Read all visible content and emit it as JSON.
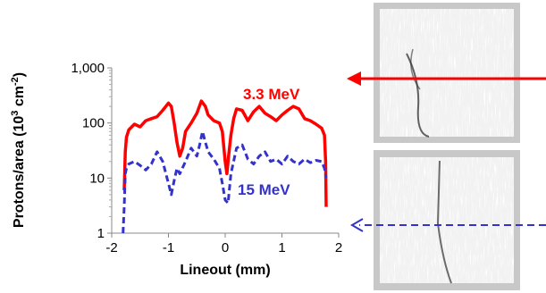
{
  "chart_data": {
    "type": "line",
    "xlabel": "Lineout (mm)",
    "ylabel": "Protons/area (10",
    "ylabel_sup1": "3",
    "ylabel_mid": " cm",
    "ylabel_sup2": "-2",
    "ylabel_end": ")",
    "xlim": [
      -2,
      2
    ],
    "ylim": [
      1,
      1000
    ],
    "yscale": "log",
    "x_ticks": [
      -2,
      -1,
      0,
      1,
      2
    ],
    "x_tick_labels": [
      "-2",
      "-1",
      "0",
      "1",
      "2"
    ],
    "y_ticks": [
      1,
      10,
      100,
      1000
    ],
    "y_tick_labels": [
      "1",
      "10",
      "100",
      "1,000"
    ],
    "series": [
      {
        "name": "3.3 MeV",
        "color": "#ff0000",
        "style": "solid",
        "x": [
          -1.78,
          -1.76,
          -1.74,
          -1.7,
          -1.6,
          -1.5,
          -1.4,
          -1.3,
          -1.2,
          -1.1,
          -1.0,
          -0.95,
          -0.9,
          -0.85,
          -0.8,
          -0.75,
          -0.7,
          -0.6,
          -0.5,
          -0.42,
          -0.35,
          -0.3,
          -0.2,
          -0.1,
          -0.05,
          0.0,
          0.03,
          0.06,
          0.1,
          0.15,
          0.2,
          0.3,
          0.4,
          0.5,
          0.6,
          0.7,
          0.8,
          0.9,
          1.0,
          1.1,
          1.2,
          1.3,
          1.4,
          1.5,
          1.6,
          1.7,
          1.75,
          1.77,
          1.78
        ],
        "y": [
          6,
          30,
          55,
          75,
          95,
          85,
          110,
          120,
          130,
          170,
          230,
          200,
          100,
          45,
          25,
          35,
          70,
          100,
          150,
          250,
          200,
          140,
          110,
          100,
          70,
          20,
          12,
          25,
          60,
          120,
          180,
          170,
          110,
          160,
          200,
          150,
          130,
          110,
          140,
          170,
          200,
          180,
          120,
          110,
          95,
          80,
          60,
          20,
          3
        ]
      },
      {
        "name": "15 MeV",
        "color": "#3333cc",
        "style": "dashed",
        "x": [
          -1.8,
          -1.78,
          -1.76,
          -1.74,
          -1.7,
          -1.6,
          -1.5,
          -1.4,
          -1.3,
          -1.2,
          -1.1,
          -1.0,
          -0.95,
          -0.9,
          -0.85,
          -0.8,
          -0.7,
          -0.6,
          -0.5,
          -0.45,
          -0.4,
          -0.35,
          -0.3,
          -0.2,
          -0.1,
          -0.05,
          0.0,
          0.05,
          0.1,
          0.2,
          0.3,
          0.4,
          0.5,
          0.6,
          0.7,
          0.8,
          0.9,
          1.0,
          1.1,
          1.2,
          1.3,
          1.4,
          1.5,
          1.6,
          1.7,
          1.75,
          1.78
        ],
        "y": [
          1,
          3,
          12,
          15,
          18,
          20,
          17,
          14,
          18,
          30,
          20,
          8,
          5,
          9,
          15,
          12,
          20,
          35,
          25,
          40,
          70,
          45,
          30,
          22,
          15,
          8,
          4,
          3.5,
          12,
          35,
          40,
          22,
          18,
          25,
          30,
          20,
          22,
          18,
          25,
          20,
          18,
          22,
          19,
          21,
          20,
          15,
          10
        ]
      }
    ],
    "annotations": [
      {
        "text": "3.3 MeV",
        "color": "#ff0000"
      },
      {
        "text": "15 MeV",
        "color": "#3333cc"
      }
    ],
    "grid": false,
    "legend": "none (inline labels)"
  },
  "colors": {
    "red_series": "#ff0000",
    "blue_series": "#3333cc",
    "frame": "#c8c8c8"
  }
}
